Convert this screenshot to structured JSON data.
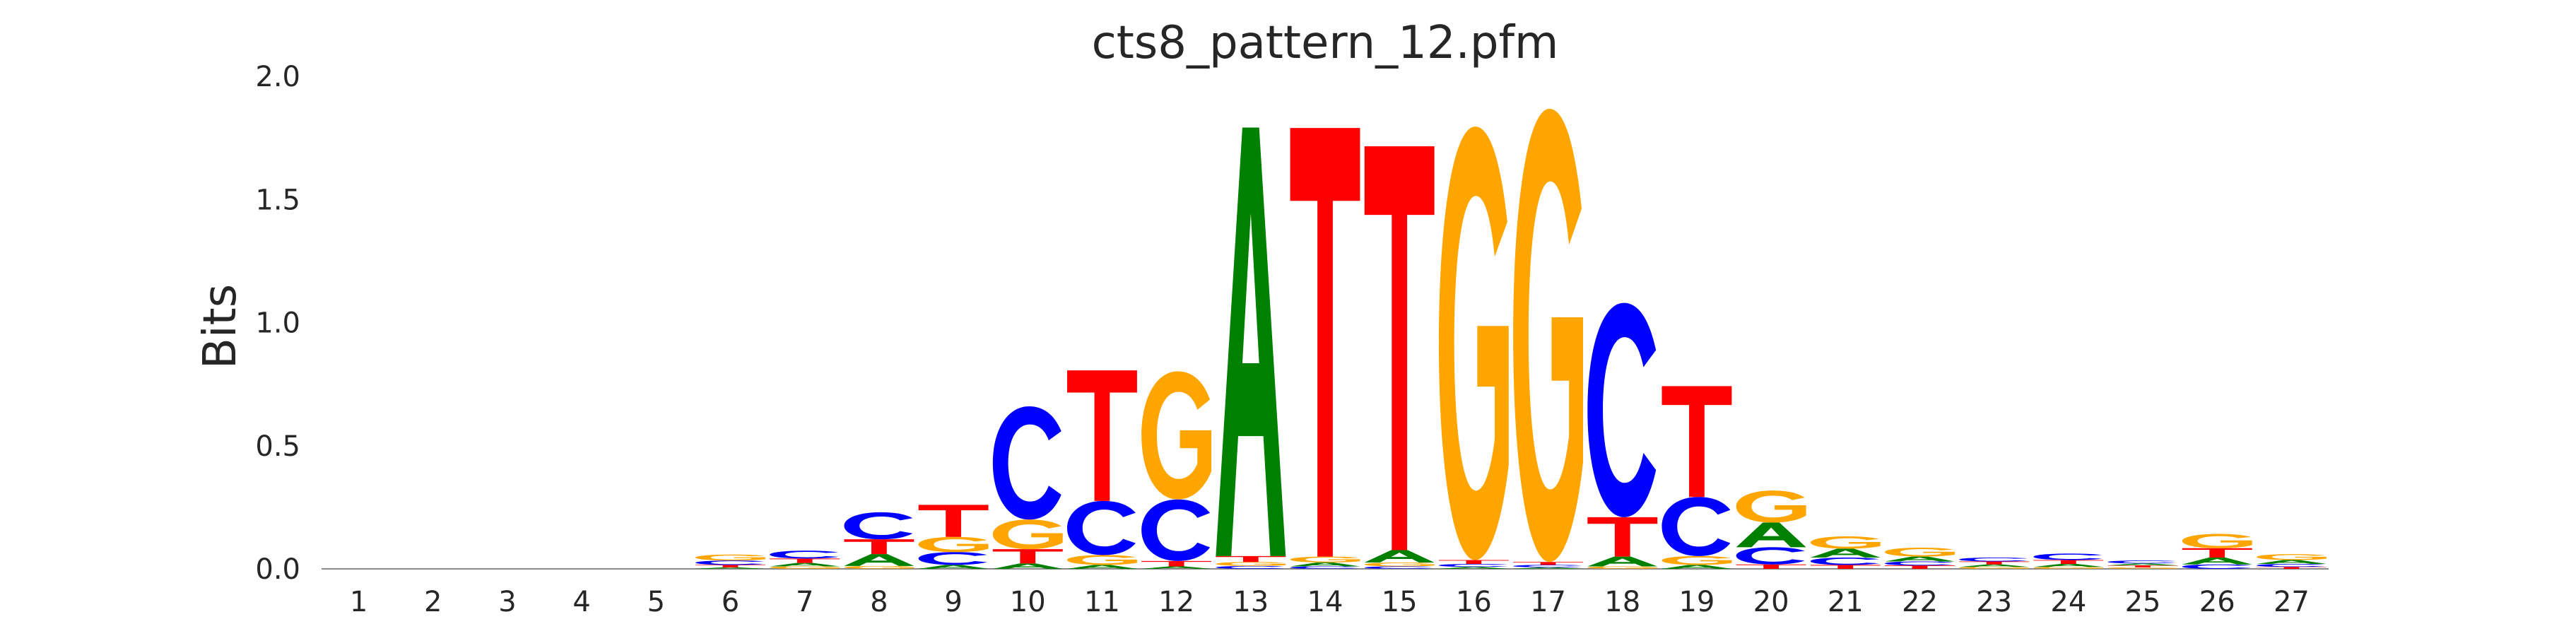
{
  "chart_data": {
    "type": "sequence-logo",
    "title": "cts8_pattern_12.pfm",
    "ylabel": "Bits",
    "xlabel": "",
    "ylim": [
      0,
      2.0
    ],
    "yticks": [
      "0.0",
      "0.5",
      "1.0",
      "1.5",
      "2.0"
    ],
    "grid": false,
    "legend": "none",
    "colors": {
      "A": "#008000",
      "C": "#0000ff",
      "G": "#ffa500",
      "T": "#ff0000"
    },
    "positions": [
      {
        "label": "1",
        "stack": []
      },
      {
        "label": "2",
        "stack": []
      },
      {
        "label": "3",
        "stack": []
      },
      {
        "label": "4",
        "stack": []
      },
      {
        "label": "5",
        "stack": []
      },
      {
        "label": "6",
        "stack": [
          {
            "b": "A",
            "v": 0.006
          },
          {
            "b": "T",
            "v": 0.01
          },
          {
            "b": "C",
            "v": 0.018
          },
          {
            "b": "G",
            "v": 0.024
          }
        ]
      },
      {
        "label": "7",
        "stack": [
          {
            "b": "G",
            "v": 0.01
          },
          {
            "b": "A",
            "v": 0.014
          },
          {
            "b": "T",
            "v": 0.018
          },
          {
            "b": "C",
            "v": 0.032
          }
        ]
      },
      {
        "label": "8",
        "stack": [
          {
            "b": "G",
            "v": 0.012
          },
          {
            "b": "A",
            "v": 0.048
          },
          {
            "b": "T",
            "v": 0.06
          },
          {
            "b": "C",
            "v": 0.11
          }
        ]
      },
      {
        "label": "9",
        "stack": [
          {
            "b": "A",
            "v": 0.016
          },
          {
            "b": "C",
            "v": 0.052
          },
          {
            "b": "G",
            "v": 0.062
          },
          {
            "b": "T",
            "v": 0.13
          }
        ]
      },
      {
        "label": "10",
        "stack": [
          {
            "b": "A",
            "v": 0.022
          },
          {
            "b": "T",
            "v": 0.058
          },
          {
            "b": "G",
            "v": 0.12
          },
          {
            "b": "C",
            "v": 0.46
          }
        ]
      },
      {
        "label": "11",
        "stack": [
          {
            "b": "A",
            "v": 0.016
          },
          {
            "b": "G",
            "v": 0.04
          },
          {
            "b": "C",
            "v": 0.22
          },
          {
            "b": "T",
            "v": 0.53
          }
        ]
      },
      {
        "label": "12",
        "stack": [
          {
            "b": "A",
            "v": 0.01
          },
          {
            "b": "T",
            "v": 0.022
          },
          {
            "b": "C",
            "v": 0.25
          },
          {
            "b": "G",
            "v": 0.52
          }
        ]
      },
      {
        "label": "13",
        "stack": [
          {
            "b": "C",
            "v": 0.012
          },
          {
            "b": "G",
            "v": 0.016
          },
          {
            "b": "T",
            "v": 0.024
          },
          {
            "b": "A",
            "v": 1.74
          }
        ]
      },
      {
        "label": "14",
        "stack": [
          {
            "b": "C",
            "v": 0.01
          },
          {
            "b": "A",
            "v": 0.016
          },
          {
            "b": "G",
            "v": 0.024
          },
          {
            "b": "T",
            "v": 1.74
          }
        ]
      },
      {
        "label": "15",
        "stack": [
          {
            "b": "C",
            "v": 0.01
          },
          {
            "b": "G",
            "v": 0.016
          },
          {
            "b": "A",
            "v": 0.05
          },
          {
            "b": "T",
            "v": 1.64
          }
        ]
      },
      {
        "label": "16",
        "stack": [
          {
            "b": "A",
            "v": 0.008
          },
          {
            "b": "C",
            "v": 0.012
          },
          {
            "b": "T",
            "v": 0.016
          },
          {
            "b": "G",
            "v": 1.76
          }
        ]
      },
      {
        "label": "17",
        "stack": [
          {
            "b": "A",
            "v": 0.006
          },
          {
            "b": "C",
            "v": 0.01
          },
          {
            "b": "T",
            "v": 0.012
          },
          {
            "b": "G",
            "v": 1.84
          }
        ]
      },
      {
        "label": "18",
        "stack": [
          {
            "b": "G",
            "v": 0.01
          },
          {
            "b": "A",
            "v": 0.04
          },
          {
            "b": "T",
            "v": 0.16
          },
          {
            "b": "C",
            "v": 0.87
          }
        ]
      },
      {
        "label": "19",
        "stack": [
          {
            "b": "A",
            "v": 0.016
          },
          {
            "b": "G",
            "v": 0.036
          },
          {
            "b": "C",
            "v": 0.24
          },
          {
            "b": "T",
            "v": 0.45
          }
        ]
      },
      {
        "label": "20",
        "stack": [
          {
            "b": "T",
            "v": 0.018
          },
          {
            "b": "C",
            "v": 0.07
          },
          {
            "b": "A",
            "v": 0.1
          },
          {
            "b": "G",
            "v": 0.13
          }
        ]
      },
      {
        "label": "21",
        "stack": [
          {
            "b": "T",
            "v": 0.016
          },
          {
            "b": "C",
            "v": 0.03
          },
          {
            "b": "A",
            "v": 0.036
          },
          {
            "b": "G",
            "v": 0.05
          }
        ]
      },
      {
        "label": "22",
        "stack": [
          {
            "b": "T",
            "v": 0.014
          },
          {
            "b": "C",
            "v": 0.016
          },
          {
            "b": "A",
            "v": 0.02
          },
          {
            "b": "G",
            "v": 0.036
          }
        ]
      },
      {
        "label": "23",
        "stack": [
          {
            "b": "G",
            "v": 0.008
          },
          {
            "b": "A",
            "v": 0.01
          },
          {
            "b": "T",
            "v": 0.012
          },
          {
            "b": "C",
            "v": 0.016
          }
        ]
      },
      {
        "label": "24",
        "stack": [
          {
            "b": "G",
            "v": 0.008
          },
          {
            "b": "A",
            "v": 0.012
          },
          {
            "b": "T",
            "v": 0.016
          },
          {
            "b": "C",
            "v": 0.026
          }
        ]
      },
      {
        "label": "25",
        "stack": [
          {
            "b": "G",
            "v": 0.006
          },
          {
            "b": "T",
            "v": 0.008
          },
          {
            "b": "A",
            "v": 0.008
          },
          {
            "b": "C",
            "v": 0.012
          }
        ]
      },
      {
        "label": "26",
        "stack": [
          {
            "b": "C",
            "v": 0.018
          },
          {
            "b": "A",
            "v": 0.028
          },
          {
            "b": "T",
            "v": 0.038
          },
          {
            "b": "G",
            "v": 0.058
          }
        ]
      },
      {
        "label": "27",
        "stack": [
          {
            "b": "T",
            "v": 0.008
          },
          {
            "b": "C",
            "v": 0.012
          },
          {
            "b": "A",
            "v": 0.016
          },
          {
            "b": "G",
            "v": 0.024
          }
        ]
      }
    ]
  }
}
